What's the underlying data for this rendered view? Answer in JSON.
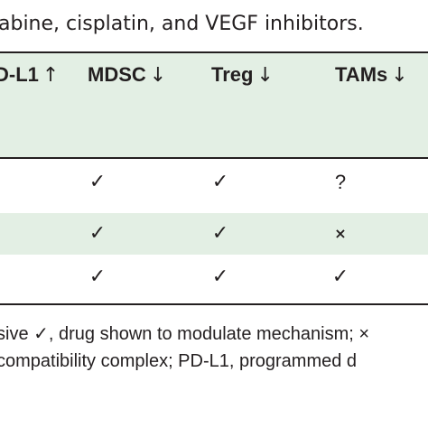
{
  "caption": "abine, cisplatin, and VEGF inhibitors.",
  "table": {
    "headers": [
      {
        "label": "D-L1",
        "arrow": "↑"
      },
      {
        "label": "MDSC",
        "arrow": "↓"
      },
      {
        "label": "Treg",
        "arrow": "↓"
      },
      {
        "label": "TAMs",
        "arrow": "↓"
      }
    ],
    "rows": [
      {
        "shaded": false,
        "cells": [
          "",
          "✓",
          "✓",
          "?"
        ]
      },
      {
        "shaded": true,
        "cells": [
          "",
          "✓",
          "✓",
          "×"
        ]
      },
      {
        "shaded": false,
        "cells": [
          "",
          "✓",
          "✓",
          "✓"
        ]
      }
    ]
  },
  "footnotes": {
    "line1": "sive ✓, drug shown to modulate mechanism; ×",
    "line2": "compatibility complex; PD-L1, programmed d"
  }
}
